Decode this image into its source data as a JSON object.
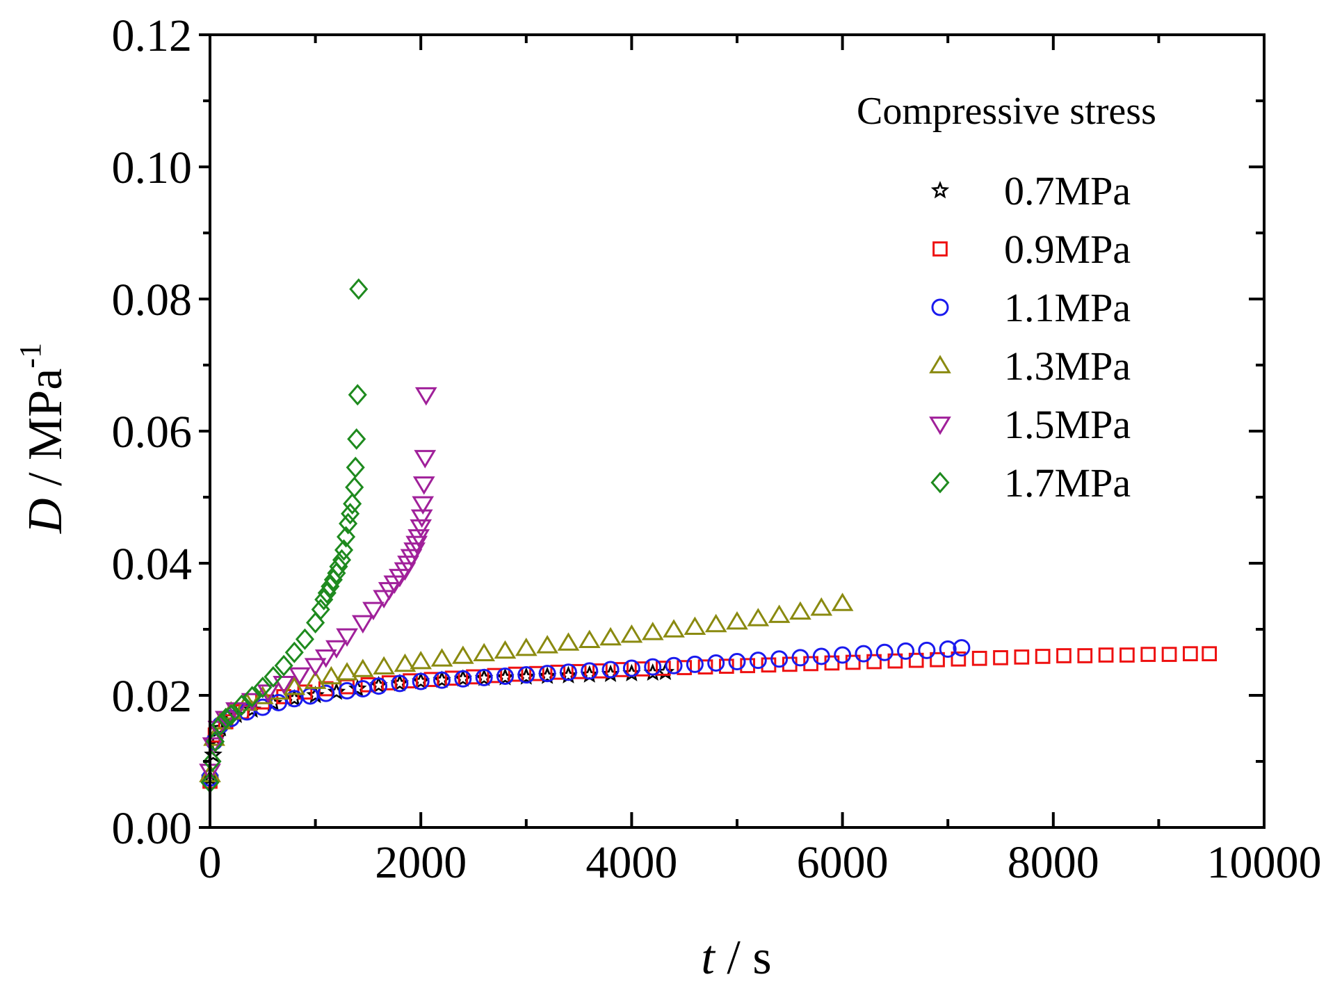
{
  "chart_data": {
    "type": "scatter",
    "xlabel_italic": "t",
    "xlabel_rest": " / s",
    "ylabel_italic": "D",
    "ylabel_rest": " / MPa",
    "ylabel_sup": "-1",
    "xlim": [
      0,
      10000
    ],
    "ylim": [
      0,
      0.12
    ],
    "x_ticks": [
      0,
      2000,
      4000,
      6000,
      8000,
      10000
    ],
    "x_tick_labels": [
      "0",
      "2000",
      "4000",
      "6000",
      "8000",
      "10000"
    ],
    "y_ticks": [
      0,
      0.02,
      0.04,
      0.06,
      0.08,
      0.1,
      0.12
    ],
    "y_tick_labels": [
      "0.00",
      "0.02",
      "0.04",
      "0.06",
      "0.08",
      "0.10",
      "0.12"
    ],
    "grid": false,
    "legend_title": "Compressive stress",
    "legend_position": "top-right",
    "series": [
      {
        "name": "0.7MPa",
        "marker": "star",
        "color": "#000000",
        "points": [
          [
            0,
            0.0075
          ],
          [
            30,
            0.011
          ],
          [
            60,
            0.0135
          ],
          [
            100,
            0.015
          ],
          [
            150,
            0.016
          ],
          [
            250,
            0.017
          ],
          [
            400,
            0.0178
          ],
          [
            600,
            0.0188
          ],
          [
            800,
            0.0195
          ],
          [
            1000,
            0.02
          ],
          [
            1200,
            0.0205
          ],
          [
            1400,
            0.021
          ],
          [
            1600,
            0.0215
          ],
          [
            1800,
            0.0218
          ],
          [
            2000,
            0.0221
          ],
          [
            2200,
            0.0223
          ],
          [
            2400,
            0.0225
          ],
          [
            2600,
            0.0226
          ],
          [
            2800,
            0.0227
          ],
          [
            3000,
            0.0228
          ],
          [
            3200,
            0.0229
          ],
          [
            3400,
            0.023
          ],
          [
            3600,
            0.0231
          ],
          [
            3800,
            0.0232
          ],
          [
            4000,
            0.0233
          ],
          [
            4200,
            0.0234
          ],
          [
            4320,
            0.0235
          ]
        ]
      },
      {
        "name": "0.9MPa",
        "marker": "square",
        "color": "#ee1111",
        "points": [
          [
            0,
            0.007
          ],
          [
            50,
            0.014
          ],
          [
            150,
            0.016
          ],
          [
            300,
            0.0175
          ],
          [
            500,
            0.019
          ],
          [
            700,
            0.0198
          ],
          [
            900,
            0.0205
          ],
          [
            1100,
            0.021
          ],
          [
            1300,
            0.0213
          ],
          [
            1500,
            0.0216
          ],
          [
            1700,
            0.0219
          ],
          [
            1900,
            0.0222
          ],
          [
            2100,
            0.0224
          ],
          [
            2300,
            0.0226
          ],
          [
            2500,
            0.0228
          ],
          [
            2700,
            0.023
          ],
          [
            2900,
            0.0232
          ],
          [
            3100,
            0.0233
          ],
          [
            3300,
            0.0235
          ],
          [
            3500,
            0.0236
          ],
          [
            3700,
            0.0237
          ],
          [
            3900,
            0.0239
          ],
          [
            4100,
            0.024
          ],
          [
            4300,
            0.0241
          ],
          [
            4500,
            0.0242
          ],
          [
            4700,
            0.0243
          ],
          [
            4900,
            0.0244
          ],
          [
            5100,
            0.0245
          ],
          [
            5300,
            0.0246
          ],
          [
            5500,
            0.0247
          ],
          [
            5700,
            0.0248
          ],
          [
            5900,
            0.0249
          ],
          [
            6100,
            0.025
          ],
          [
            6300,
            0.0251
          ],
          [
            6500,
            0.0252
          ],
          [
            6700,
            0.0253
          ],
          [
            6900,
            0.0254
          ],
          [
            7100,
            0.0255
          ],
          [
            7300,
            0.0256
          ],
          [
            7500,
            0.0257
          ],
          [
            7700,
            0.0258
          ],
          [
            7900,
            0.0259
          ],
          [
            8100,
            0.026
          ],
          [
            8300,
            0.026
          ],
          [
            8500,
            0.0261
          ],
          [
            8700,
            0.0261
          ],
          [
            8900,
            0.0262
          ],
          [
            9100,
            0.0262
          ],
          [
            9300,
            0.0263
          ],
          [
            9480,
            0.0263
          ]
        ]
      },
      {
        "name": "1.1MPa",
        "marker": "circle",
        "color": "#1a1aee",
        "points": [
          [
            0,
            0.0075
          ],
          [
            40,
            0.013
          ],
          [
            100,
            0.0155
          ],
          [
            200,
            0.0165
          ],
          [
            350,
            0.0175
          ],
          [
            500,
            0.0182
          ],
          [
            650,
            0.0189
          ],
          [
            800,
            0.0195
          ],
          [
            950,
            0.0199
          ],
          [
            1100,
            0.0203
          ],
          [
            1300,
            0.0207
          ],
          [
            1450,
            0.021
          ],
          [
            1600,
            0.0214
          ],
          [
            1800,
            0.0218
          ],
          [
            2000,
            0.0221
          ],
          [
            2200,
            0.0223
          ],
          [
            2400,
            0.0225
          ],
          [
            2600,
            0.0227
          ],
          [
            2800,
            0.0229
          ],
          [
            3000,
            0.0231
          ],
          [
            3200,
            0.0233
          ],
          [
            3400,
            0.0235
          ],
          [
            3600,
            0.0237
          ],
          [
            3800,
            0.0239
          ],
          [
            4000,
            0.0241
          ],
          [
            4200,
            0.0243
          ],
          [
            4400,
            0.0245
          ],
          [
            4600,
            0.0247
          ],
          [
            4800,
            0.0249
          ],
          [
            5000,
            0.0251
          ],
          [
            5200,
            0.0253
          ],
          [
            5400,
            0.0255
          ],
          [
            5600,
            0.0257
          ],
          [
            5800,
            0.0259
          ],
          [
            6000,
            0.0261
          ],
          [
            6200,
            0.0263
          ],
          [
            6400,
            0.0265
          ],
          [
            6600,
            0.0267
          ],
          [
            6800,
            0.0268
          ],
          [
            7000,
            0.027
          ],
          [
            7130,
            0.0272
          ]
        ]
      },
      {
        "name": "1.3MPa",
        "marker": "triangle-up",
        "color": "#8a8a10",
        "points": [
          [
            0,
            0.008
          ],
          [
            40,
            0.0135
          ],
          [
            100,
            0.016
          ],
          [
            200,
            0.0175
          ],
          [
            350,
            0.0188
          ],
          [
            500,
            0.0198
          ],
          [
            650,
            0.0205
          ],
          [
            800,
            0.0212
          ],
          [
            1000,
            0.0221
          ],
          [
            1150,
            0.0228
          ],
          [
            1300,
            0.0234
          ],
          [
            1450,
            0.0239
          ],
          [
            1650,
            0.0243
          ],
          [
            1850,
            0.0247
          ],
          [
            2000,
            0.0251
          ],
          [
            2200,
            0.0255
          ],
          [
            2400,
            0.0259
          ],
          [
            2600,
            0.0263
          ],
          [
            2800,
            0.0267
          ],
          [
            3000,
            0.0271
          ],
          [
            3200,
            0.0275
          ],
          [
            3400,
            0.0279
          ],
          [
            3600,
            0.0283
          ],
          [
            3800,
            0.0287
          ],
          [
            4000,
            0.0291
          ],
          [
            4200,
            0.0295
          ],
          [
            4400,
            0.0299
          ],
          [
            4600,
            0.0303
          ],
          [
            4800,
            0.0307
          ],
          [
            5000,
            0.0311
          ],
          [
            5200,
            0.0316
          ],
          [
            5400,
            0.0321
          ],
          [
            5600,
            0.0326
          ],
          [
            5800,
            0.0332
          ],
          [
            6000,
            0.0339
          ]
        ]
      },
      {
        "name": "1.5MPa",
        "marker": "triangle-down",
        "color": "#a0209a",
        "points": [
          [
            0,
            0.0085
          ],
          [
            30,
            0.0125
          ],
          [
            80,
            0.015
          ],
          [
            150,
            0.0165
          ],
          [
            250,
            0.0178
          ],
          [
            400,
            0.0192
          ],
          [
            550,
            0.0205
          ],
          [
            700,
            0.0218
          ],
          [
            850,
            0.0231
          ],
          [
            1000,
            0.0245
          ],
          [
            1100,
            0.0258
          ],
          [
            1200,
            0.0272
          ],
          [
            1300,
            0.029
          ],
          [
            1450,
            0.031
          ],
          [
            1550,
            0.033
          ],
          [
            1650,
            0.0348
          ],
          [
            1700,
            0.036
          ],
          [
            1750,
            0.037
          ],
          [
            1800,
            0.038
          ],
          [
            1850,
            0.039
          ],
          [
            1880,
            0.04
          ],
          [
            1910,
            0.041
          ],
          [
            1940,
            0.042
          ],
          [
            1960,
            0.043
          ],
          [
            1980,
            0.044
          ],
          [
            2000,
            0.0455
          ],
          [
            2010,
            0.047
          ],
          [
            2020,
            0.049
          ],
          [
            2030,
            0.052
          ],
          [
            2040,
            0.056
          ],
          [
            2050,
            0.0655
          ]
        ]
      },
      {
        "name": "1.7MPa",
        "marker": "diamond",
        "color": "#1e8a1e",
        "points": [
          [
            0,
            0.0068
          ],
          [
            20,
            0.01
          ],
          [
            50,
            0.013
          ],
          [
            100,
            0.0155
          ],
          [
            150,
            0.0165
          ],
          [
            200,
            0.017
          ],
          [
            300,
            0.0185
          ],
          [
            400,
            0.0198
          ],
          [
            500,
            0.0212
          ],
          [
            600,
            0.0228
          ],
          [
            700,
            0.0245
          ],
          [
            800,
            0.0265
          ],
          [
            900,
            0.0285
          ],
          [
            1000,
            0.031
          ],
          [
            1050,
            0.033
          ],
          [
            1080,
            0.0345
          ],
          [
            1110,
            0.0355
          ],
          [
            1140,
            0.0365
          ],
          [
            1170,
            0.0375
          ],
          [
            1200,
            0.0385
          ],
          [
            1220,
            0.0395
          ],
          [
            1250,
            0.0405
          ],
          [
            1270,
            0.042
          ],
          [
            1290,
            0.044
          ],
          [
            1310,
            0.046
          ],
          [
            1330,
            0.0475
          ],
          [
            1350,
            0.049
          ],
          [
            1370,
            0.0515
          ],
          [
            1380,
            0.0545
          ],
          [
            1390,
            0.0588
          ],
          [
            1400,
            0.0655
          ],
          [
            1410,
            0.0815
          ]
        ]
      }
    ]
  }
}
